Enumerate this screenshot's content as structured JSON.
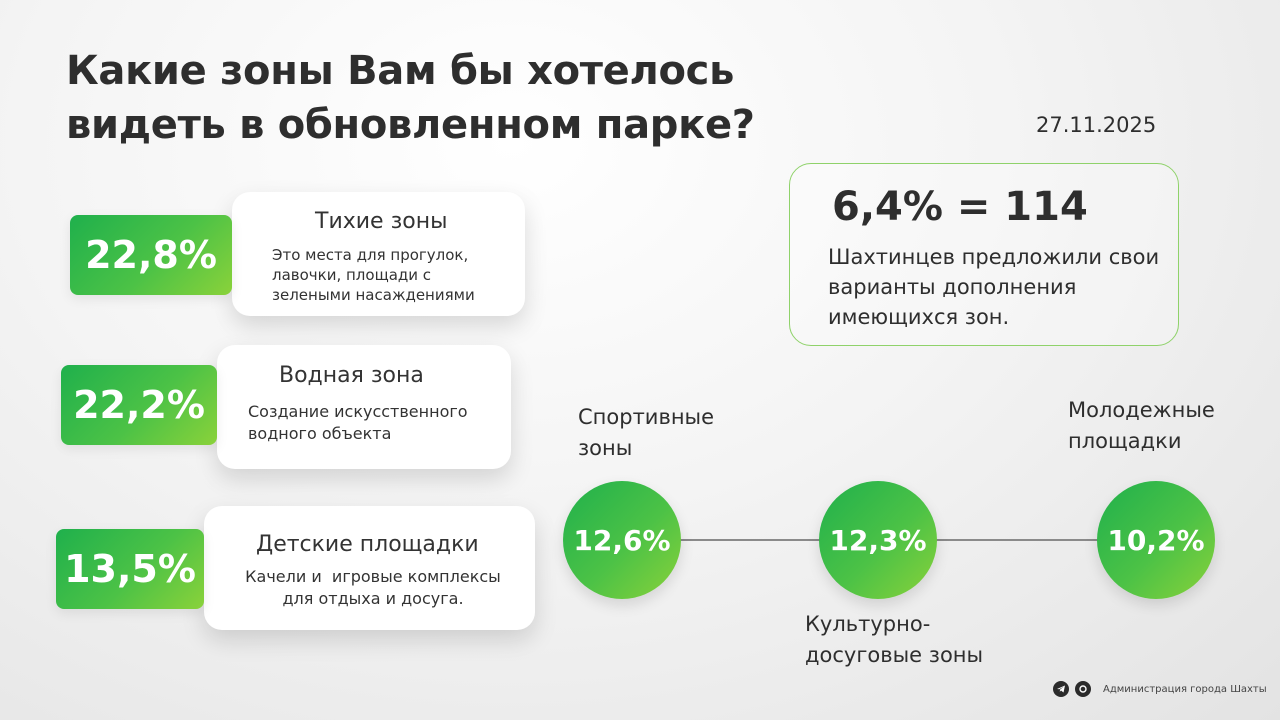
{
  "header": {
    "title_line1": "Какие зоны Вам бы хотелось",
    "title_line2": "видеть в обновленном парке?",
    "date": "27.11.2025"
  },
  "zones": [
    {
      "percent": "22,8%",
      "title": "Тихие зоны",
      "description": "Это места для прогулок, лавочки, площади с зелеными насаждениями"
    },
    {
      "percent": "22,2%",
      "title": "Водная зона",
      "description": "Создание искусственного водного объекта"
    },
    {
      "percent": "13,5%",
      "title": "Детские площадки",
      "description_line1": "Качели и  игровые комплексы",
      "description_line2": "для отдыха и досуга."
    }
  ],
  "stat": {
    "headline": "6,4% = 114",
    "text": "Шахтинцев предложили свои варианты дополнения имеющихся зон."
  },
  "circles": [
    {
      "percent": "12,6%",
      "label_line1": "Спортивные",
      "label_line2": "зоны"
    },
    {
      "percent": "12,3%",
      "label_line1": "Культурно-",
      "label_line2": "досуговые зоны"
    },
    {
      "percent": "10,2%",
      "label_line1": "Молодежные",
      "label_line2": "площадки"
    }
  ],
  "footer": {
    "text": "Администрация города Шахты",
    "icons": [
      "telegram-icon",
      "vk-max-icon"
    ]
  },
  "colors": {
    "green_start": "#1fb04c",
    "green_end": "#8ad23a",
    "stat_border": "#8fd26a",
    "text": "#2e2e2e"
  }
}
